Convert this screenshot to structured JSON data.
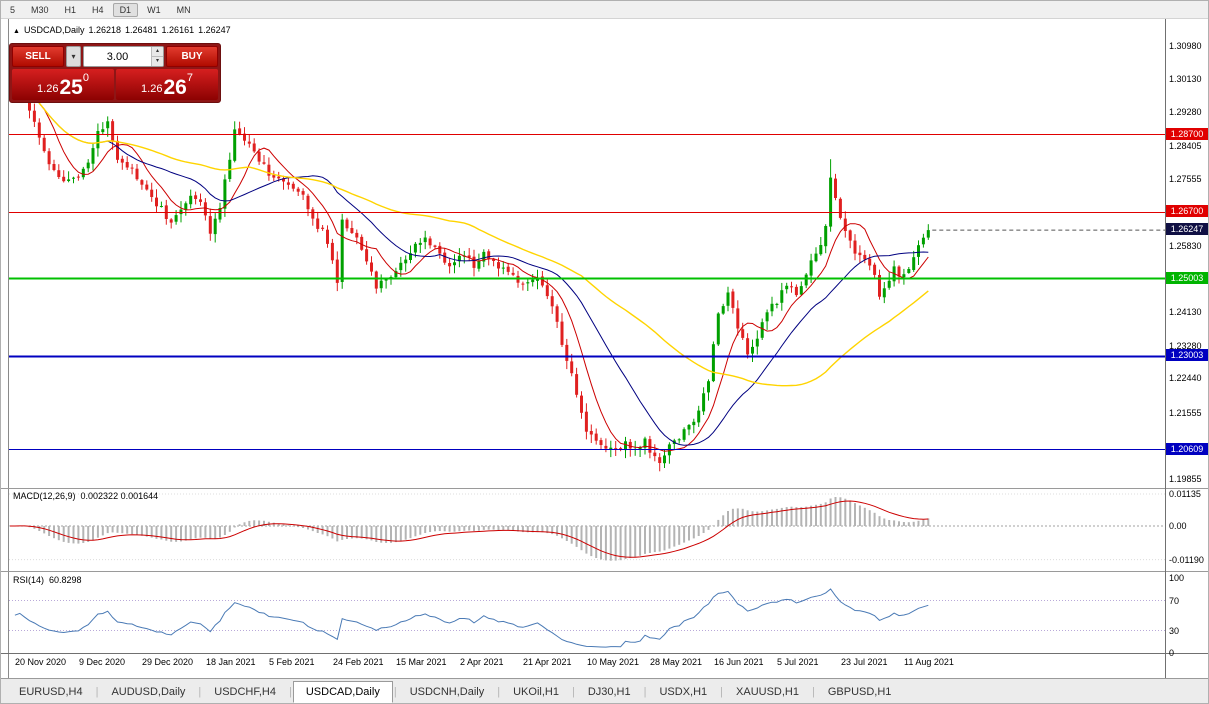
{
  "toolbar": {
    "timeframes": [
      "5",
      "M30",
      "H1",
      "H4",
      "D1",
      "W1",
      "MN"
    ],
    "active": "D1"
  },
  "chart_header": {
    "symbol": "USDCAD,Daily",
    "open": "1.26218",
    "high": "1.26481",
    "low": "1.26161",
    "close": "1.26247"
  },
  "trade_panel": {
    "sell_label": "SELL",
    "buy_label": "BUY",
    "volume": "3.00",
    "sell_price_prefix": "1.26",
    "sell_price_big": "25",
    "sell_price_sup": "0",
    "buy_price_prefix": "1.26",
    "buy_price_big": "26",
    "buy_price_sup": "7"
  },
  "price_axis": {
    "labels": [
      {
        "v": 1.3098,
        "t": "1.30980"
      },
      {
        "v": 1.3013,
        "t": "1.30130"
      },
      {
        "v": 1.2928,
        "t": "1.29280"
      },
      {
        "v": 1.28405,
        "t": "1.28405"
      },
      {
        "v": 1.27555,
        "t": "1.27555"
      },
      {
        "v": 1.2583,
        "t": "1.25830"
      },
      {
        "v": 1.2413,
        "t": "1.24130"
      },
      {
        "v": 1.2328,
        "t": "1.23280"
      },
      {
        "v": 1.2244,
        "t": "1.22440"
      },
      {
        "v": 1.21555,
        "t": "1.21555"
      },
      {
        "v": 1.19855,
        "t": "1.19855"
      }
    ],
    "badges": [
      {
        "v": 1.287,
        "t": "1.28700",
        "color": "#e00000"
      },
      {
        "v": 1.267,
        "t": "1.26700",
        "color": "#e00000"
      },
      {
        "v": 1.26247,
        "t": "1.26247",
        "color": "#101044"
      },
      {
        "v": 1.25003,
        "t": "1.25003",
        "color": "#00b400"
      },
      {
        "v": 1.23003,
        "t": "1.23003",
        "color": "#0000c0"
      },
      {
        "v": 1.20609,
        "t": "1.20609",
        "color": "#0000c0"
      }
    ]
  },
  "macd_panel": {
    "label": "MACD(12,26,9)",
    "values": "0.002322 0.001644",
    "axis": [
      {
        "v": 0.01135,
        "t": "0.01135"
      },
      {
        "v": 0,
        "t": "0.00"
      },
      {
        "v": -0.0119,
        "t": "-0.01190"
      }
    ]
  },
  "rsi_panel": {
    "label": "RSI(14)",
    "value": "60.8298",
    "axis": [
      {
        "v": 100,
        "t": "100"
      },
      {
        "v": 70,
        "t": "70"
      },
      {
        "v": 30,
        "t": "30"
      },
      {
        "v": 0,
        "t": "0"
      }
    ]
  },
  "bottom_tabs": {
    "tabs": [
      {
        "label": "EURUSD,H4",
        "active": false
      },
      {
        "label": "AUDUSD,Daily",
        "active": false
      },
      {
        "label": "USDCHF,H4",
        "active": false
      },
      {
        "label": "USDCAD,Daily",
        "active": true
      },
      {
        "label": "USDCNH,Daily",
        "active": false
      },
      {
        "label": "UKOil,H1",
        "active": false
      },
      {
        "label": "DJ30,H1",
        "active": false
      },
      {
        "label": "USDX,H1",
        "active": false
      },
      {
        "label": "XAUUSD,H1",
        "active": false
      },
      {
        "label": "GBPUSD,H1",
        "active": false
      }
    ]
  },
  "chart_data": {
    "type": "candlestick",
    "symbol": "USDCAD",
    "timeframe": "Daily",
    "ohlc": {
      "open": 1.26218,
      "high": 1.26481,
      "low": 1.26161,
      "close": 1.26247
    },
    "n_bars": 189,
    "price_min": 1.1962,
    "price_max": 1.3162,
    "last_close": 1.26247,
    "up_color": "#00a000",
    "down_color": "#e02020",
    "anchors": [
      [
        0,
        1.2985
      ],
      [
        2,
        1.301
      ],
      [
        4,
        1.294
      ],
      [
        6,
        1.287
      ],
      [
        8,
        1.28
      ],
      [
        10,
        1.276
      ],
      [
        12,
        1.2745
      ],
      [
        14,
        1.277
      ],
      [
        16,
        1.28
      ],
      [
        18,
        1.287
      ],
      [
        20,
        1.2905
      ],
      [
        22,
        1.2815
      ],
      [
        24,
        1.279
      ],
      [
        26,
        1.276
      ],
      [
        28,
        1.272
      ],
      [
        31,
        1.268
      ],
      [
        33,
        1.264
      ],
      [
        35,
        1.268
      ],
      [
        37,
        1.2715
      ],
      [
        39,
        1.269
      ],
      [
        41,
        1.2625
      ],
      [
        43,
        1.268
      ],
      [
        46,
        1.2875
      ],
      [
        48,
        1.286
      ],
      [
        50,
        1.2825
      ],
      [
        53,
        1.2775
      ],
      [
        56,
        1.2745
      ],
      [
        58,
        1.2725
      ],
      [
        60,
        1.271
      ],
      [
        63,
        1.2635
      ],
      [
        65,
        1.26
      ],
      [
        66,
        1.254
      ],
      [
        67,
        1.248
      ],
      [
        68,
        1.2655
      ],
      [
        70,
        1.262
      ],
      [
        72,
        1.2585
      ],
      [
        74,
        1.252
      ],
      [
        75,
        1.247
      ],
      [
        77,
        1.2505
      ],
      [
        79,
        1.252
      ],
      [
        81,
        1.2545
      ],
      [
        83,
        1.258
      ],
      [
        85,
        1.2605
      ],
      [
        87,
        1.258
      ],
      [
        89,
        1.2535
      ],
      [
        91,
        1.254
      ],
      [
        93,
        1.256
      ],
      [
        95,
        1.2535
      ],
      [
        97,
        1.256
      ],
      [
        99,
        1.2545
      ],
      [
        101,
        1.252
      ],
      [
        103,
        1.2505
      ],
      [
        105,
        1.248
      ],
      [
        107,
        1.2505
      ],
      [
        109,
        1.248
      ],
      [
        111,
        1.2435
      ],
      [
        113,
        1.233
      ],
      [
        115,
        1.225
      ],
      [
        117,
        1.215
      ],
      [
        118,
        1.2105
      ],
      [
        120,
        1.2085
      ],
      [
        122,
        1.2065
      ],
      [
        124,
        1.2055
      ],
      [
        126,
        1.208
      ],
      [
        128,
        1.206
      ],
      [
        130,
        1.208
      ],
      [
        132,
        1.204
      ],
      [
        133,
        1.202
      ],
      [
        135,
        1.2075
      ],
      [
        137,
        1.2095
      ],
      [
        139,
        1.212
      ],
      [
        141,
        1.216
      ],
      [
        143,
        1.224
      ],
      [
        144,
        1.233
      ],
      [
        145,
        1.242
      ],
      [
        147,
        1.246
      ],
      [
        149,
        1.238
      ],
      [
        151,
        1.231
      ],
      [
        153,
        1.235
      ],
      [
        155,
        1.241
      ],
      [
        157,
        1.2445
      ],
      [
        159,
        1.248
      ],
      [
        161,
        1.2455
      ],
      [
        163,
        1.2515
      ],
      [
        165,
        1.256
      ],
      [
        167,
        1.263
      ],
      [
        168,
        1.275
      ],
      [
        169,
        1.2705
      ],
      [
        171,
        1.262
      ],
      [
        173,
        1.257
      ],
      [
        175,
        1.255
      ],
      [
        177,
        1.252
      ],
      [
        178,
        1.2445
      ],
      [
        179,
        1.247
      ],
      [
        181,
        1.2525
      ],
      [
        183,
        1.2505
      ],
      [
        185,
        1.2555
      ],
      [
        187,
        1.2595
      ],
      [
        188,
        1.26247
      ]
    ],
    "special_bars": {
      "0": {
        "high": 1.3035
      },
      "67": {
        "low": 1.2468
      },
      "133": {
        "low": 1.2005
      },
      "168": {
        "high": 1.2807
      }
    },
    "moving_averages": [
      {
        "name": "fast",
        "period": 8,
        "color": "#cc0000",
        "width": 1
      },
      {
        "name": "medium",
        "period": 21,
        "color": "#000080",
        "width": 1
      },
      {
        "name": "slow",
        "period": 50,
        "color": "#ffd400",
        "width": 1.4
      }
    ],
    "levels": [
      {
        "price": 1.287,
        "label": "1.28700",
        "color": "#e00000",
        "line_width": 1
      },
      {
        "price": 1.267,
        "label": "1.26700",
        "color": "#e00000",
        "line_width": 1
      },
      {
        "price": 1.25003,
        "label": "1.25003",
        "color": "#00c000",
        "line_width": 2
      },
      {
        "price": 1.23003,
        "label": "1.23003",
        "color": "#0000c0",
        "line_width": 2
      },
      {
        "price": 1.20609,
        "label": "1.20609",
        "color": "#0000c0",
        "line_width": 1
      }
    ],
    "macd": {
      "fast": 12,
      "slow": 26,
      "signal": 9,
      "current": 0.002322,
      "current_signal": 0.001644,
      "axis_max": 0.01135,
      "axis_min": -0.0119
    },
    "rsi": {
      "period": 14,
      "current": 60.8298,
      "levels": [
        70,
        30
      ],
      "color": "#4a7ab5"
    },
    "x_labels": [
      "20 Nov 2020",
      "9 Dec 2020",
      "29 Dec 2020",
      "18 Jan 2021",
      "5 Feb 2021",
      "24 Feb 2021",
      "15 Mar 2021",
      "2 Apr 2021",
      "21 Apr 2021",
      "10 May 2021",
      "28 May 2021",
      "16 Jun 2021",
      "5 Jul 2021",
      "23 Jul 2021",
      "11 Aug 2021"
    ]
  }
}
